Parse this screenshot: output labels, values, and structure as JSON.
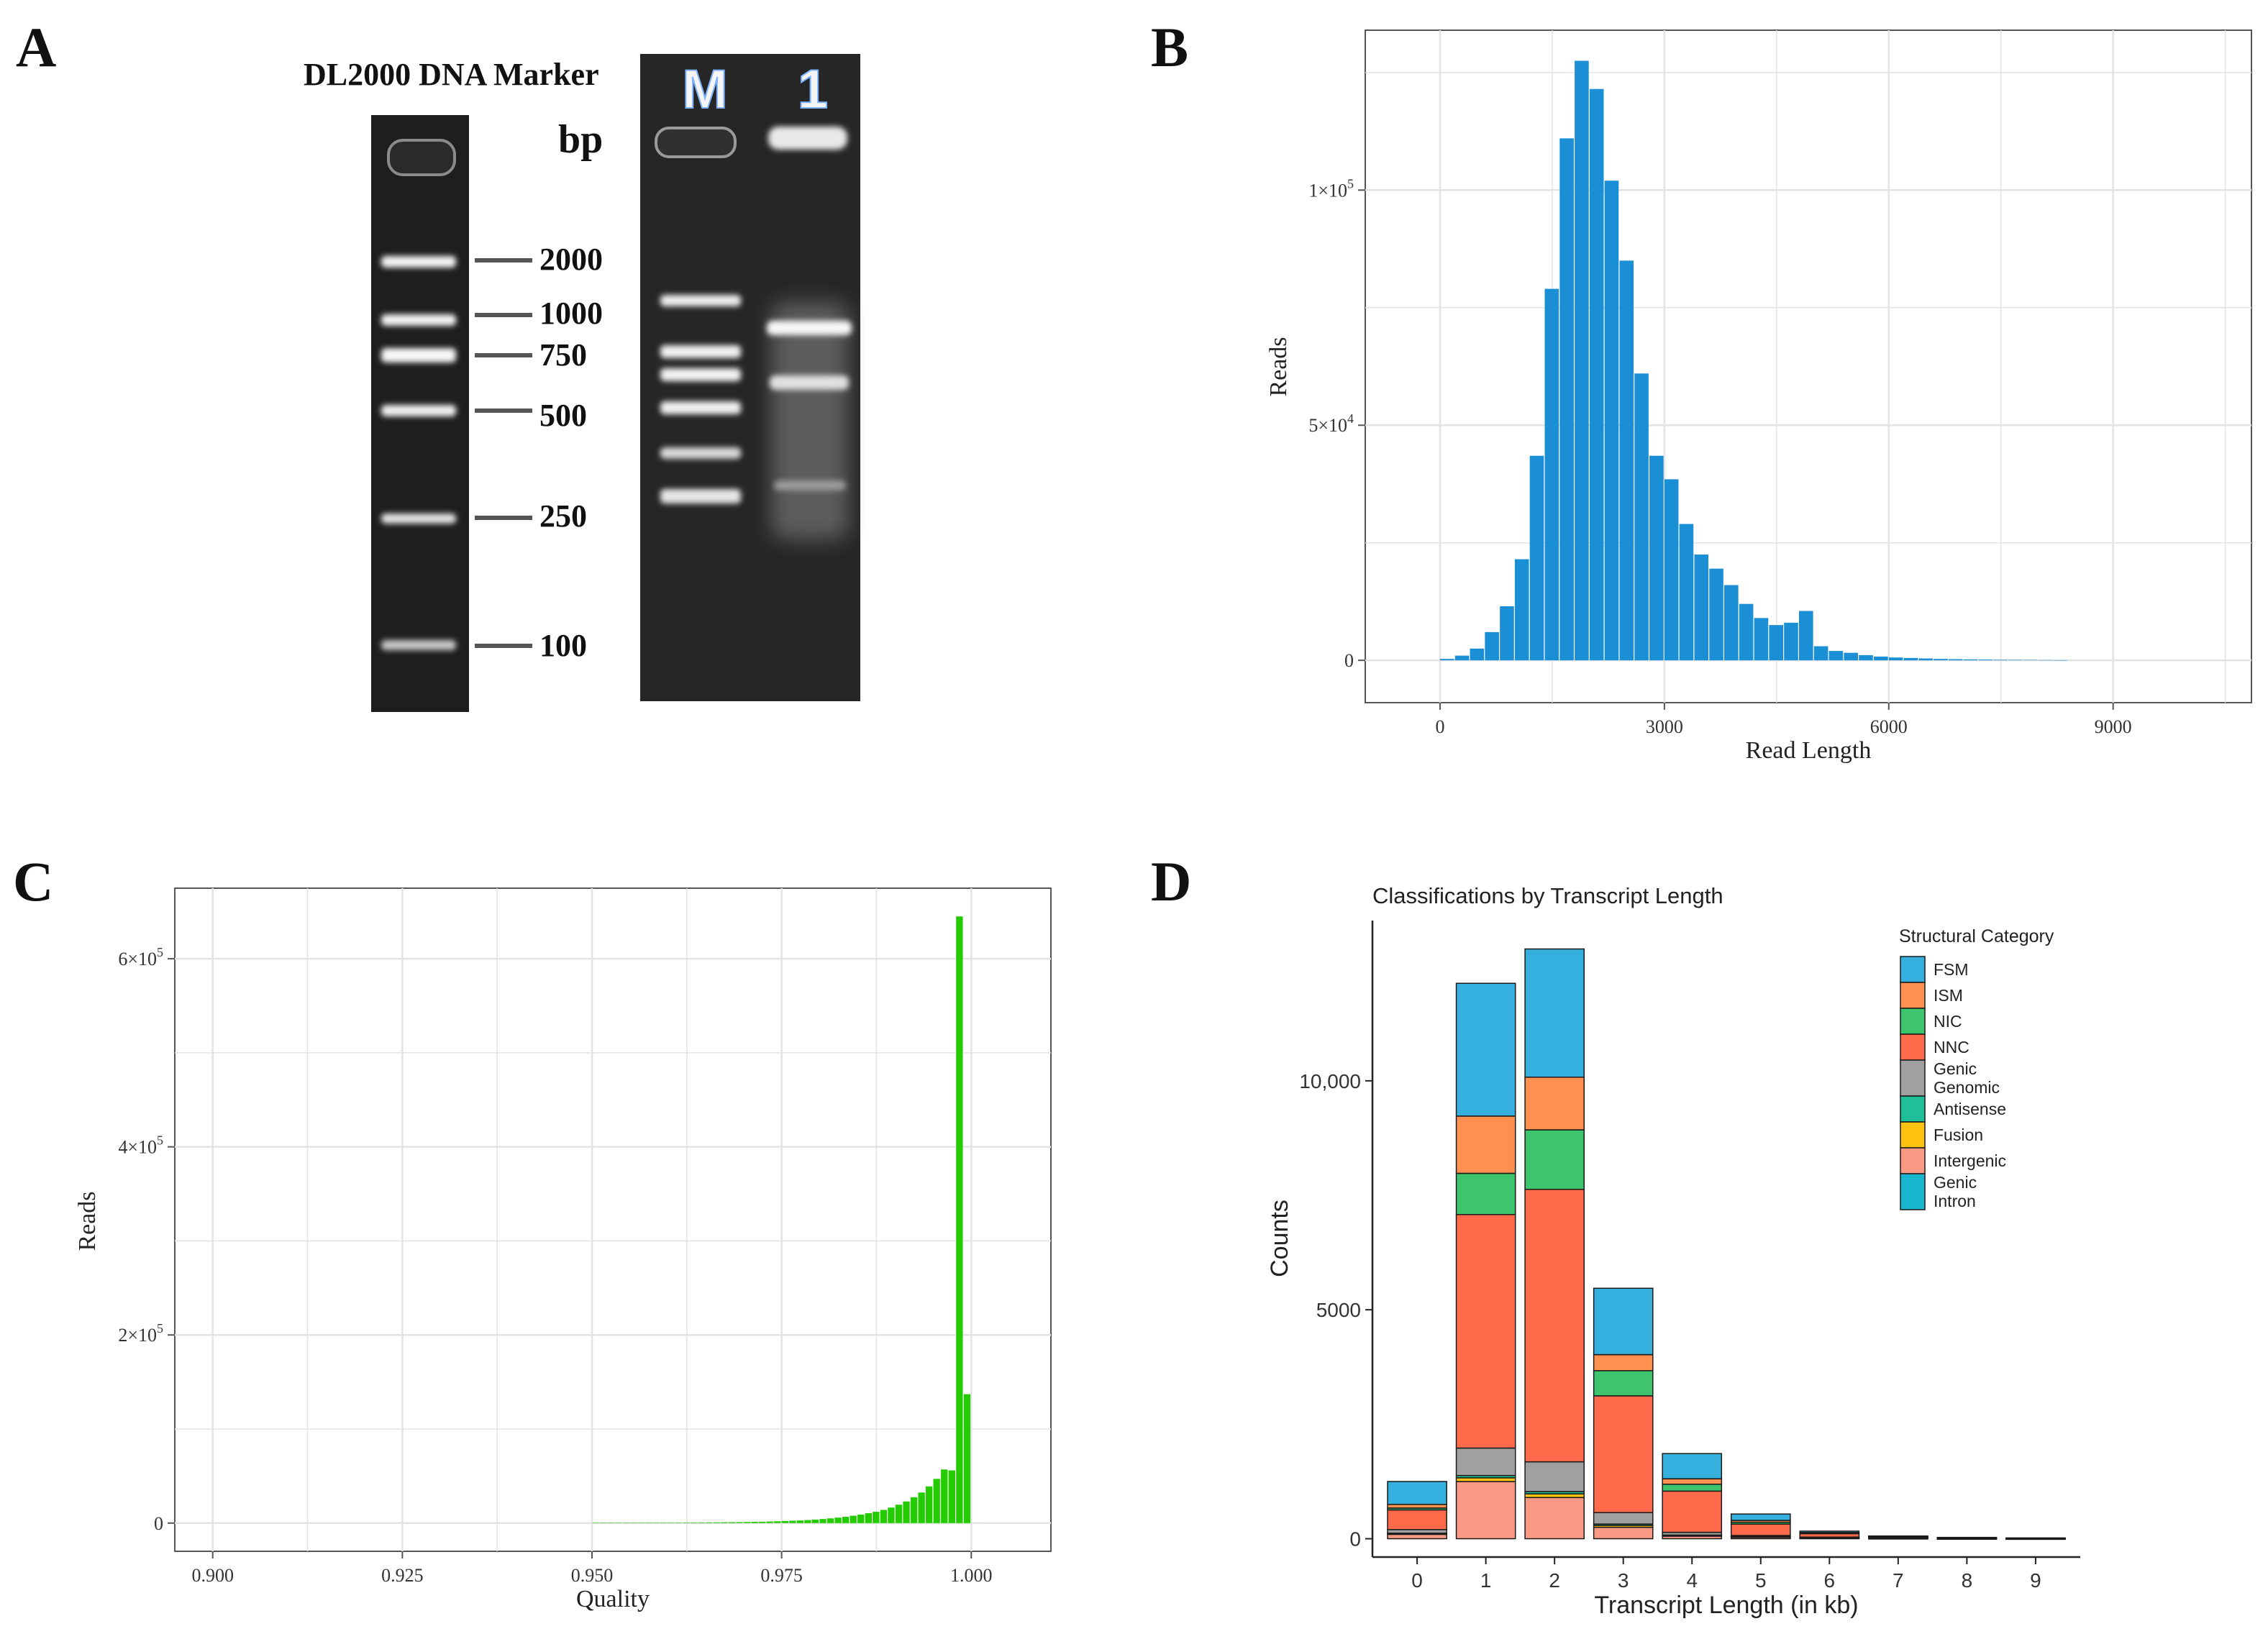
{
  "panels": {
    "a": {
      "letter": "A",
      "marker_title": "DL2000 DNA Marker",
      "unit": "bp",
      "lane_labels": [
        "M",
        "1"
      ],
      "marker_sizes": [
        "2000",
        "1000",
        "750",
        "500",
        "250",
        "100"
      ]
    },
    "b": {
      "letter": "B"
    },
    "c": {
      "letter": "C"
    },
    "d": {
      "letter": "D"
    }
  },
  "colors": {
    "bars_b": "#1a8fd6",
    "bars_c": "#22cc00",
    "grid": "#e3e3e3",
    "gel_bg": "#1b1b1b",
    "band": "#f2f2f2"
  },
  "chart_data": [
    {
      "panel": "B",
      "type": "bar",
      "title": "",
      "xlabel": "Read Length",
      "ylabel": "Reads",
      "xlim": [
        -1000,
        10850
      ],
      "ylim": [
        -9000,
        134000
      ],
      "xticks": [
        0,
        3000,
        6000,
        9000
      ],
      "xtick_labels": [
        "0",
        "3000",
        "6000",
        "9000"
      ],
      "yticks": [
        0,
        50000,
        100000
      ],
      "ytick_labels": [
        "0",
        "5×10",
        "1×10"
      ],
      "ytick_exponents": [
        "",
        "4",
        "5"
      ],
      "bin_width": 200,
      "bin_starts": [
        0,
        200,
        400,
        600,
        800,
        1000,
        1200,
        1400,
        1600,
        1800,
        2000,
        2200,
        2400,
        2600,
        2800,
        3000,
        3200,
        3400,
        3600,
        3800,
        4000,
        4200,
        4400,
        4600,
        4800,
        5000,
        5200,
        5400,
        5600,
        5800,
        6000,
        6200,
        6400,
        6600,
        6800,
        7000,
        7200,
        7400,
        7600,
        7800,
        8000,
        8200
      ],
      "values": [
        300,
        1000,
        2500,
        6000,
        11500,
        21500,
        43500,
        79000,
        111000,
        127500,
        121500,
        102000,
        85000,
        61000,
        43500,
        38500,
        29000,
        22500,
        19500,
        16000,
        12000,
        9000,
        7500,
        8000,
        10500,
        3000,
        2000,
        1600,
        1100,
        800,
        600,
        500,
        400,
        300,
        250,
        200,
        150,
        120,
        100,
        80,
        60,
        40
      ]
    },
    {
      "panel": "C",
      "type": "bar",
      "title": "",
      "xlabel": "Quality",
      "ylabel": "Reads",
      "xlim": [
        0.895,
        1.0105
      ],
      "ylim": [
        -30000,
        675000
      ],
      "xticks": [
        0.9,
        0.925,
        0.95,
        0.975,
        1.0
      ],
      "xtick_labels": [
        "0.900",
        "0.925",
        "0.950",
        "0.975",
        "1.000"
      ],
      "yticks": [
        0,
        200000,
        400000,
        600000
      ],
      "ytick_labels": [
        "0",
        "2×10",
        "4×10",
        "6×10"
      ],
      "ytick_exponents": [
        "",
        "5",
        "5",
        "5"
      ],
      "bin_width": 0.001,
      "bin_starts": [
        0.95,
        0.951,
        0.952,
        0.953,
        0.954,
        0.955,
        0.956,
        0.957,
        0.958,
        0.959,
        0.96,
        0.961,
        0.962,
        0.963,
        0.964,
        0.965,
        0.966,
        0.967,
        0.968,
        0.969,
        0.97,
        0.971,
        0.972,
        0.973,
        0.974,
        0.975,
        0.976,
        0.977,
        0.978,
        0.979,
        0.98,
        0.981,
        0.982,
        0.983,
        0.984,
        0.985,
        0.986,
        0.987,
        0.988,
        0.989,
        0.99,
        0.991,
        0.992,
        0.993,
        0.994,
        0.995,
        0.996,
        0.997,
        0.998,
        0.999
      ],
      "values": [
        200,
        200,
        220,
        240,
        260,
        280,
        300,
        330,
        360,
        400,
        430,
        470,
        520,
        570,
        620,
        700,
        780,
        860,
        950,
        1050,
        1200,
        1350,
        1500,
        1700,
        1950,
        2200,
        2500,
        2800,
        3200,
        3700,
        4300,
        5000,
        5800,
        6700,
        7800,
        9000,
        10500,
        12000,
        14000,
        16500,
        19500,
        23000,
        27500,
        32500,
        39000,
        47000,
        57000,
        56000,
        645000,
        137000
      ]
    },
    {
      "panel": "D",
      "type": "bar",
      "stacked": true,
      "title": "Classifications by Transcript Length",
      "xlabel": "Transcript Length (in kb)",
      "ylabel": "Counts",
      "legend_title": "Structural Category",
      "legend_position": "top-right",
      "xlim": [
        -0.65,
        9.65
      ],
      "ylim": [
        -400,
        13500
      ],
      "categories": [
        "0",
        "1",
        "2",
        "3",
        "4",
        "5",
        "6",
        "7",
        "8",
        "9"
      ],
      "yticks": [
        0,
        5000,
        10000
      ],
      "ytick_labels": [
        "0",
        "5000",
        "10,000"
      ],
      "series": [
        {
          "name": "Intergenic",
          "color": "#fa9a85",
          "values": [
            100,
            1250,
            900,
            250,
            60,
            40,
            20,
            10,
            5,
            3
          ]
        },
        {
          "name": "Fusion",
          "color": "#ffc20e",
          "values": [
            10,
            80,
            80,
            40,
            10,
            5,
            3,
            2,
            1,
            1
          ]
        },
        {
          "name": "Antisense",
          "color": "#1fbf9a",
          "values": [
            10,
            50,
            50,
            30,
            10,
            5,
            3,
            2,
            1,
            1
          ]
        },
        {
          "name": "Genic Genomic",
          "color": "#a0a0a0",
          "values": [
            80,
            600,
            650,
            250,
            60,
            20,
            10,
            5,
            3,
            2
          ]
        },
        {
          "name": "NNC",
          "color": "#ff6a4a",
          "values": [
            430,
            5100,
            5950,
            2550,
            900,
            250,
            80,
            25,
            10,
            5
          ]
        },
        {
          "name": "NIC",
          "color": "#3dc46c",
          "values": [
            40,
            900,
            1300,
            550,
            150,
            40,
            10,
            3,
            2,
            1
          ]
        },
        {
          "name": "ISM",
          "color": "#ff9050",
          "values": [
            80,
            1250,
            1150,
            350,
            120,
            40,
            10,
            3,
            2,
            1
          ]
        },
        {
          "name": "FSM",
          "color": "#35b0de",
          "values": [
            500,
            2900,
            2800,
            1450,
            550,
            140,
            30,
            10,
            5,
            3
          ]
        },
        {
          "name": "Genic Intron",
          "color": "#18b6cf",
          "values": [
            0,
            0,
            0,
            0,
            0,
            0,
            0,
            0,
            0,
            0
          ]
        }
      ],
      "legend_order": [
        "FSM",
        "ISM",
        "NIC",
        "NNC",
        "Genic Genomic",
        "Antisense",
        "Fusion",
        "Intergenic",
        "Genic Intron"
      ]
    }
  ]
}
